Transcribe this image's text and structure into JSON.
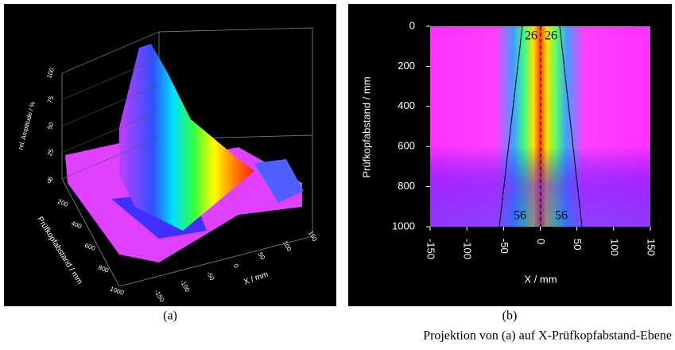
{
  "panels": [
    {
      "label": "(a)",
      "zlabel": "rel. Amplitude / %",
      "ylabel": "Prüfkopfabstand / mm",
      "xlabel": "X / mm",
      "zticks": [
        0,
        25,
        50,
        75,
        100
      ],
      "yticks": [
        0,
        200,
        400,
        600,
        800,
        1000
      ],
      "xticks": [
        -150,
        -100,
        -50,
        0,
        50,
        100,
        150
      ]
    },
    {
      "label": "(b)",
      "ylabel": "Prüfkopfabstand / mm",
      "xlabel": "X / mm",
      "yticks": [
        0,
        200,
        400,
        600,
        800,
        1000
      ],
      "xticks": [
        -150,
        -100,
        -50,
        0,
        50,
        100,
        150
      ],
      "ylim": [
        0,
        1000
      ],
      "xlim": [
        -150,
        150
      ],
      "annotations": {
        "top": [
          26,
          26
        ],
        "bottom": [
          56,
          56
        ]
      }
    }
  ],
  "caption": "Projektion von (a) auf X-Prüfkopfabstand-Ebene"
}
